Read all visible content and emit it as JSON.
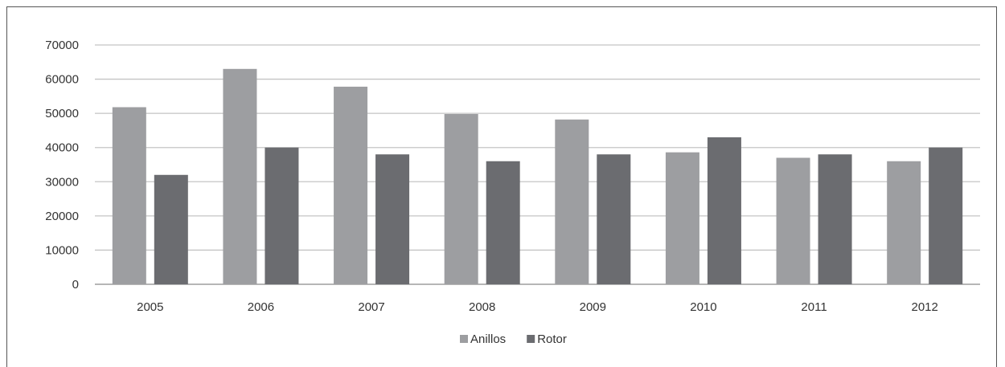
{
  "chart_data": {
    "type": "bar",
    "categories": [
      "2005",
      "2006",
      "2007",
      "2008",
      "2009",
      "2010",
      "2011",
      "2012"
    ],
    "series": [
      {
        "name": "Anillos",
        "color": "#9d9ea1",
        "values": [
          51800,
          63000,
          57800,
          49800,
          48200,
          38600,
          37000,
          36000
        ]
      },
      {
        "name": "Rotor",
        "color": "#6b6c70",
        "values": [
          32000,
          40000,
          38000,
          36000,
          38000,
          43000,
          38000,
          40000
        ]
      }
    ],
    "yticks": [
      "0",
      "10000",
      "20000",
      "30000",
      "40000",
      "50000",
      "60000",
      "70000"
    ],
    "ylim": [
      0,
      70000
    ],
    "grid": true,
    "legend": "bottom-center",
    "title": "",
    "xlabel": "",
    "ylabel": ""
  }
}
